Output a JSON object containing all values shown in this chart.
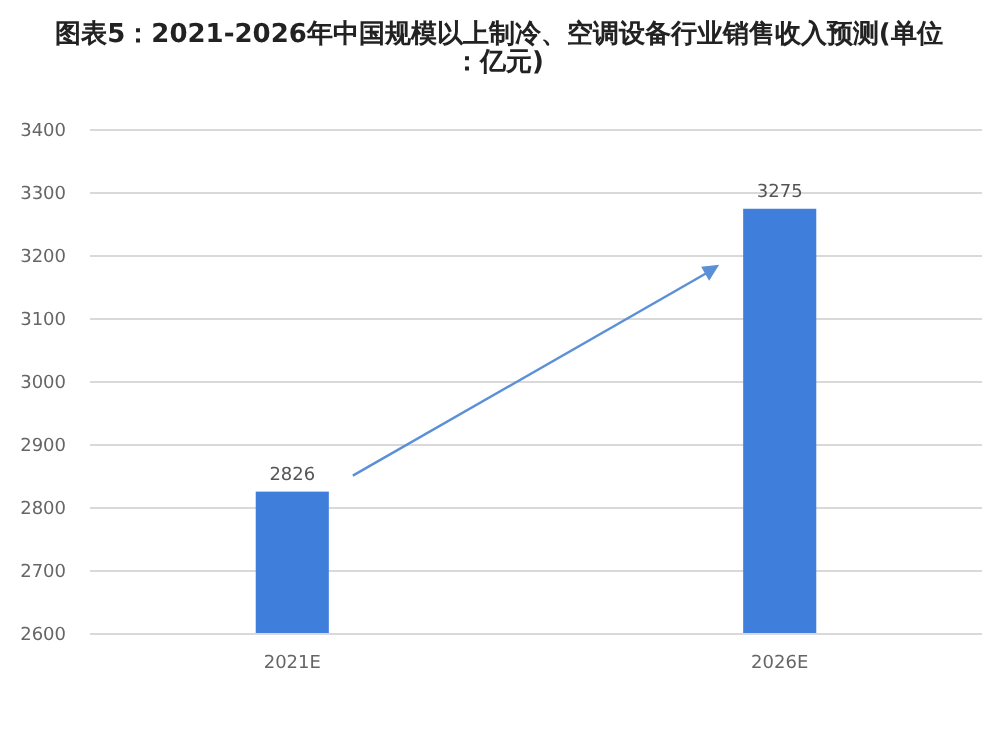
{
  "chart_data": {
    "type": "bar",
    "title": "图表5：2021-2026年中国规模以上制冷、空调设备行业销售收入预测(单位：亿元)",
    "categories": [
      "2021E",
      "2026E"
    ],
    "values": [
      2826,
      3275
    ],
    "color": "#3f7fdb",
    "data_labels": true,
    "ylim": [
      2600,
      3400
    ],
    "yticks": [
      2600,
      2700,
      2800,
      2900,
      3000,
      3100,
      3200,
      3300,
      3400
    ],
    "grid": "y"
  }
}
